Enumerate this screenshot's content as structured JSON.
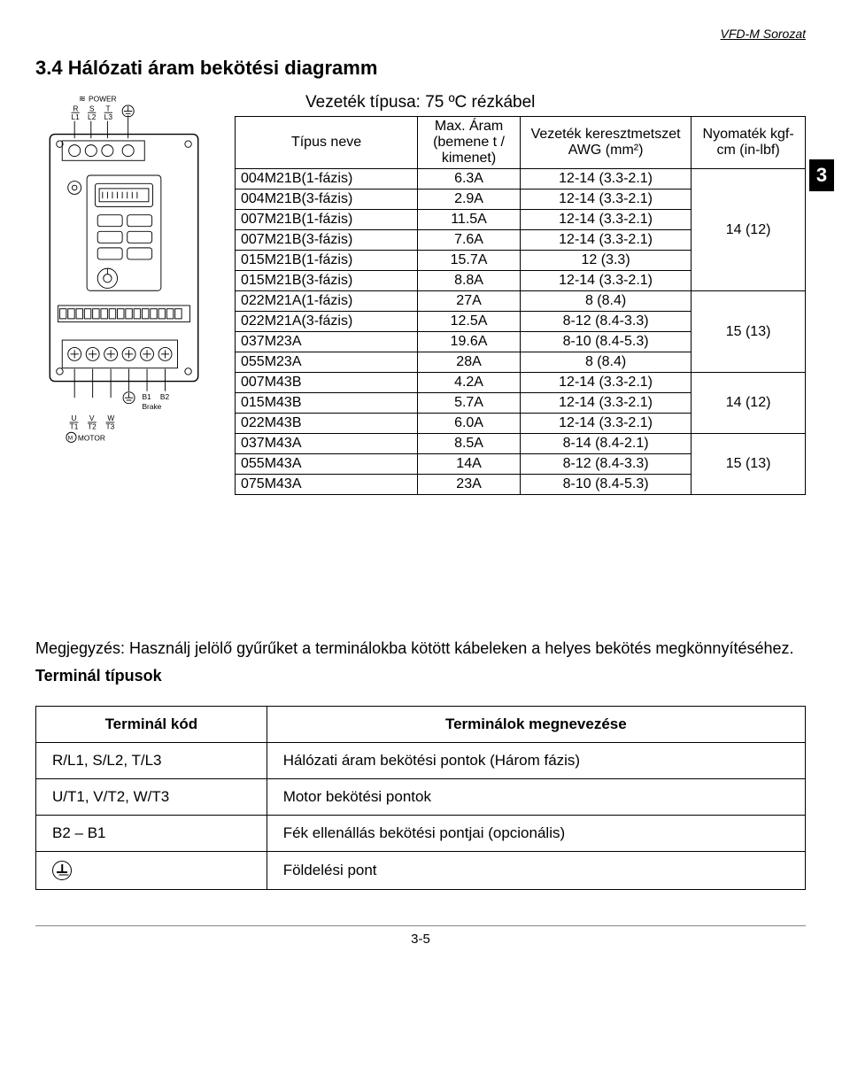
{
  "header": {
    "series": "VFD-M Sorozat"
  },
  "section": {
    "title": "3.4 Hálózati áram bekötési diagramm"
  },
  "chapter_badge": "3",
  "diagram": {
    "power_label": "POWER",
    "power_terms": [
      "R",
      "S",
      "T"
    ],
    "power_lines": [
      "L1",
      "L2",
      "L3"
    ],
    "brake_terms": [
      "B1",
      "B2"
    ],
    "brake_label": "Brake",
    "motor_terms": [
      "U",
      "V",
      "W"
    ],
    "motor_lines": [
      "T1",
      "T2",
      "T3"
    ],
    "motor_label": "MOTOR"
  },
  "wire_table": {
    "title": "Vezeték típusa: 75 ºC rézkábel",
    "headers": [
      "Típus neve",
      "Max. Áram (bemene t / kimenet)",
      "Vezeték keresztmetszet AWG (mm²)",
      "Nyomaték kgf-cm (in-lbf)"
    ],
    "groups": [
      {
        "torque": "14 (12)",
        "rows": [
          [
            "004M21B(1-fázis)",
            "6.3A",
            "12-14 (3.3-2.1)"
          ],
          [
            "004M21B(3-fázis)",
            "2.9A",
            "12-14 (3.3-2.1)"
          ],
          [
            "007M21B(1-fázis)",
            "11.5A",
            "12-14 (3.3-2.1)"
          ],
          [
            "007M21B(3-fázis)",
            "7.6A",
            "12-14 (3.3-2.1)"
          ],
          [
            "015M21B(1-fázis)",
            "15.7A",
            "12 (3.3)"
          ],
          [
            "015M21B(3-fázis)",
            "8.8A",
            "12-14 (3.3-2.1)"
          ]
        ]
      },
      {
        "torque": "15 (13)",
        "rows": [
          [
            "022M21A(1-fázis)",
            "27A",
            "8 (8.4)"
          ],
          [
            "022M21A(3-fázis)",
            "12.5A",
            "8-12 (8.4-3.3)"
          ],
          [
            "037M23A",
            "19.6A",
            "8-10 (8.4-5.3)"
          ],
          [
            "055M23A",
            "28A",
            "8 (8.4)"
          ]
        ]
      },
      {
        "torque": "14 (12)",
        "rows": [
          [
            "007M43B",
            "4.2A",
            "12-14 (3.3-2.1)"
          ],
          [
            "015M43B",
            "5.7A",
            "12-14 (3.3-2.1)"
          ],
          [
            "022M43B",
            "6.0A",
            "12-14 (3.3-2.1)"
          ]
        ]
      },
      {
        "torque": "15 (13)",
        "rows": [
          [
            "037M43A",
            "8.5A",
            "8-14 (8.4-2.1)"
          ],
          [
            "055M43A",
            "14A",
            "8-12 (8.4-3.3)"
          ],
          [
            "075M43A",
            "23A",
            "8-10 (8.4-5.3)"
          ]
        ]
      }
    ]
  },
  "note": {
    "text": "Megjegyzés: Használj jelölő gyűrűket a terminálokba kötött kábeleken a helyes bekötés megkönnyítéséhez.",
    "subtitle": "Terminál típusok"
  },
  "term_table": {
    "headers": [
      "Terminál kód",
      "Terminálok megnevezése"
    ],
    "rows": [
      [
        "R/L1, S/L2, T/L3",
        "Hálózati áram bekötési pontok (Három fázis)"
      ],
      [
        "U/T1, V/T2, W/T3",
        "Motor bekötési pontok"
      ],
      [
        "B2 – B1",
        "Fék ellenállás bekötési pontjai (opcionális)"
      ],
      [
        "__ground__",
        "Földelési pont"
      ]
    ]
  },
  "page_number": "3-5"
}
